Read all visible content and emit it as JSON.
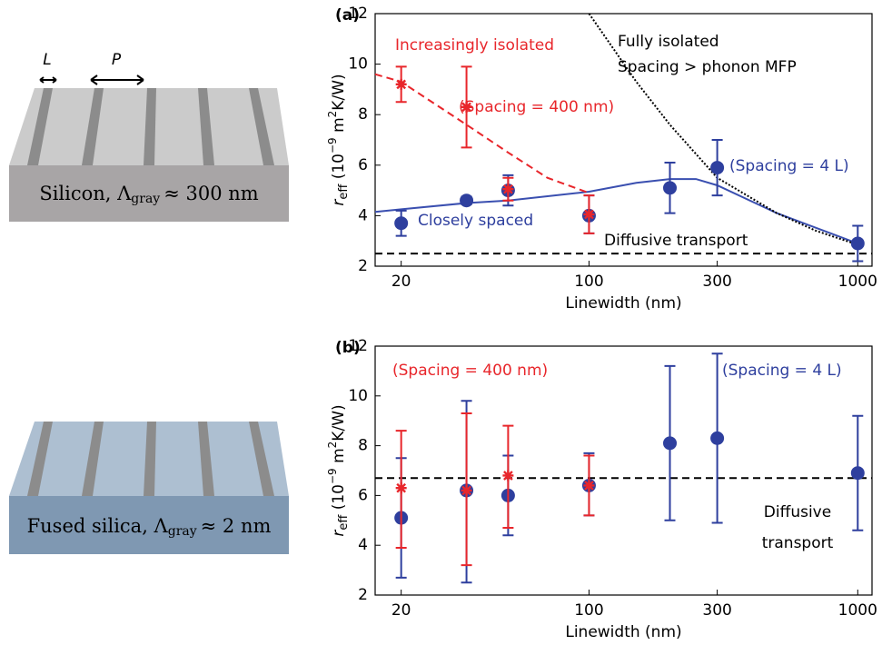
{
  "illustrations": {
    "top": {
      "label_L": "L",
      "label_P": "P",
      "caption": [
        "Silicon, Λ",
        "gray",
        "≈ 300 nm"
      ]
    },
    "bottom": {
      "caption": [
        "Fused silica, Λ",
        "gray",
        "≈ 2 nm"
      ]
    }
  },
  "chart_data": [
    {
      "type": "scatter",
      "panel_label": "(a)",
      "x_label": "Linewidth (nm)",
      "y_label": {
        "symbol": "r",
        "subscript": "eff",
        "open": " (10",
        "exp": "−9",
        "unit": " m",
        "exp2": "2",
        "close": "K/W)"
      },
      "log_x": true,
      "xlim": [
        16,
        1130
      ],
      "ylim": [
        2,
        12
      ],
      "xticks": [
        20,
        100,
        300,
        1000
      ],
      "yticks": [
        2,
        4,
        6,
        8,
        10,
        12
      ],
      "series": [
        {
          "color": "#2e3f9e",
          "marker": "circle",
          "x": [
            20,
            35,
            50,
            100,
            200,
            300,
            1000
          ],
          "values": [
            3.7,
            4.6,
            5.0,
            4.0,
            5.1,
            5.9,
            2.9
          ],
          "err_low": [
            3.2,
            4.45,
            4.4,
            3.3,
            4.1,
            4.8,
            2.2
          ],
          "err_high": [
            4.2,
            4.75,
            5.6,
            4.8,
            6.1,
            7.0,
            3.6
          ]
        },
        {
          "color": "#e8262b",
          "marker": "star",
          "x": [
            20,
            35,
            50,
            100
          ],
          "values": [
            9.2,
            8.3,
            5.05,
            4.05
          ],
          "err_low": [
            8.5,
            6.7,
            4.6,
            3.3
          ],
          "err_high": [
            9.9,
            9.9,
            5.5,
            4.8
          ]
        }
      ],
      "curves": [
        {
          "color": "#3a4fb0",
          "style": "solid",
          "x": [
            16,
            20,
            35,
            50,
            100,
            150,
            200,
            250,
            300,
            500,
            1000
          ],
          "values": [
            4.15,
            4.25,
            4.5,
            4.6,
            4.95,
            5.3,
            5.45,
            5.45,
            5.2,
            4.1,
            2.9
          ]
        },
        {
          "color": "#e8262b",
          "style": "dashed",
          "x": [
            16,
            20,
            35,
            50,
            70,
            100
          ],
          "values": [
            9.6,
            9.3,
            7.6,
            6.5,
            5.5,
            4.9
          ]
        },
        {
          "color": "#000000",
          "style": "dotted",
          "x": [
            100,
            150,
            200,
            300,
            500,
            700,
            1000
          ],
          "values": [
            12,
            9.3,
            7.6,
            5.5,
            4.1,
            3.4,
            2.85
          ]
        }
      ],
      "hlines": [
        {
          "value": 2.5,
          "color": "#000000",
          "style": "dashed"
        }
      ],
      "annotations": [
        {
          "text": "Increasingly isolated",
          "color": "#e8262b"
        },
        {
          "text": "(Spacing = 400 nm)",
          "color": "#e8262b"
        },
        {
          "text": "Fully isolated",
          "color": "#000000"
        },
        {
          "text": "Spacing > phonon MFP",
          "color": "#000000"
        },
        {
          "text": "(Spacing = 4 L)",
          "color": "#2e3f9e"
        },
        {
          "text": "Closely spaced",
          "color": "#2e3f9e"
        },
        {
          "text": "Diffusive transport",
          "color": "#000000"
        }
      ]
    },
    {
      "type": "scatter",
      "panel_label": "(b)",
      "x_label": "Linewidth (nm)",
      "y_label": {
        "symbol": "r",
        "subscript": "eff",
        "open": " (10",
        "exp": "−9",
        "unit": " m",
        "exp2": "2",
        "close": "K/W)"
      },
      "log_x": true,
      "xlim": [
        16,
        1130
      ],
      "ylim": [
        2,
        12
      ],
      "xticks": [
        20,
        100,
        300,
        1000
      ],
      "yticks": [
        2,
        4,
        6,
        8,
        10,
        12
      ],
      "series": [
        {
          "color": "#2e3f9e",
          "marker": "circle",
          "x": [
            20,
            35,
            50,
            100,
            200,
            300,
            1000
          ],
          "values": [
            5.1,
            6.2,
            6.0,
            6.4,
            8.1,
            8.3,
            6.9
          ],
          "err_low": [
            2.7,
            2.5,
            4.4,
            5.2,
            5.0,
            4.9,
            4.6
          ],
          "err_high": [
            7.5,
            9.8,
            7.6,
            7.7,
            11.2,
            11.7,
            9.2
          ]
        },
        {
          "color": "#e8262b",
          "marker": "star",
          "x": [
            20,
            35,
            50,
            100
          ],
          "values": [
            6.3,
            6.2,
            6.8,
            6.4
          ],
          "err_low": [
            3.9,
            3.2,
            4.7,
            5.2
          ],
          "err_high": [
            8.6,
            9.3,
            8.8,
            7.6
          ]
        }
      ],
      "curves": [],
      "hlines": [
        {
          "value": 6.7,
          "color": "#000000",
          "style": "dashed"
        }
      ],
      "annotations": [
        {
          "text": "(Spacing = 400 nm)",
          "color": "#e8262b"
        },
        {
          "text": "(Spacing = 4 L)",
          "color": "#2e3f9e"
        },
        {
          "text": "Diffusive",
          "color": "#000000"
        },
        {
          "text": "transport",
          "color": "#000000"
        }
      ]
    }
  ]
}
